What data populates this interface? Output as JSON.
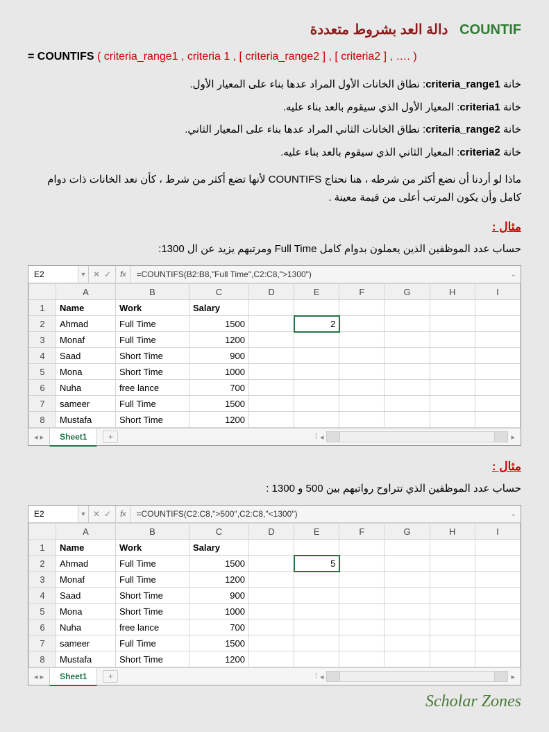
{
  "title": {
    "arabic": "دالة العد بشروط متعددة",
    "english": "COUNTIF"
  },
  "syntax": {
    "eq": "=",
    "fn": "COUNTIFS",
    "args": "( criteria_range1 , criteria 1 , [ criteria_range2 ] , [ criteria2 ] , …. )"
  },
  "params": [
    {
      "name": "criteria_range1",
      "desc": ": نطاق الخانات الأول المراد عدها بناء على المعيار الأول.",
      "label": "خانة "
    },
    {
      "name": "criteria1",
      "desc": ": المعيار الأول الذي سيقوم بالعد بناء عليه.",
      "label": "خانة "
    },
    {
      "name": "criteria_range2",
      "desc": ": نطاق الخانات الثاني المراد عدها بناء على المعيار الثاني.",
      "label": "خانة "
    },
    {
      "name": "criteria2",
      "desc": ": المعيار الثاني الذي سيقوم بالعد بناء عليه.",
      "label": "خانة "
    }
  ],
  "description": "ماذا لو أردنا أن نضع أكثر من شرطه ، هنا نحتاج COUNTIFS لأنها تضع أكثر من شرط ، كأن نعد الخانات ذات دوام كامل وأن يكون المرتب أعلى من قيمة معينة .",
  "example1": {
    "label": "مثال :",
    "text": "حساب عدد الموظفين الذين يعملون بدوام كامل Full Time ومرتبهم يزيد عن ال 1300:",
    "namebox": "E2",
    "formula": "=COUNTIFS(B2:B8,\"Full Time\",C2:C8,\">1300\")",
    "result": "2",
    "sheet_tab": "Sheet1"
  },
  "example2": {
    "label": "مثال :",
    "text": "حساب عدد الموظفين الذي تتراوح رواتبهم بين 500 و 1300 :",
    "namebox": "E2",
    "formula": "=COUNTIFS(C2:C8,\">500\",C2:C8,\"<1300\")",
    "result": "5",
    "sheet_tab": "Sheet1"
  },
  "columns": [
    "A",
    "B",
    "C",
    "D",
    "E",
    "F",
    "G",
    "H",
    "I"
  ],
  "headers": {
    "A": "Name",
    "B": "Work",
    "C": "Salary"
  },
  "rows": [
    {
      "n": "2",
      "A": "Ahmad",
      "B": "Full Time",
      "C": "1500"
    },
    {
      "n": "3",
      "A": "Monaf",
      "B": "Full Time",
      "C": "1200"
    },
    {
      "n": "4",
      "A": "Saad",
      "B": "Short Time",
      "C": "900"
    },
    {
      "n": "5",
      "A": "Mona",
      "B": "Short Time",
      "C": "1000"
    },
    {
      "n": "6",
      "A": "Nuha",
      "B": "free lance",
      "C": "700"
    },
    {
      "n": "7",
      "A": "sameer",
      "B": "Full Time",
      "C": "1500"
    },
    {
      "n": "8",
      "A": "Mustafa",
      "B": "Short Time",
      "C": "1200"
    }
  ],
  "watermark": "Scholar Zones"
}
